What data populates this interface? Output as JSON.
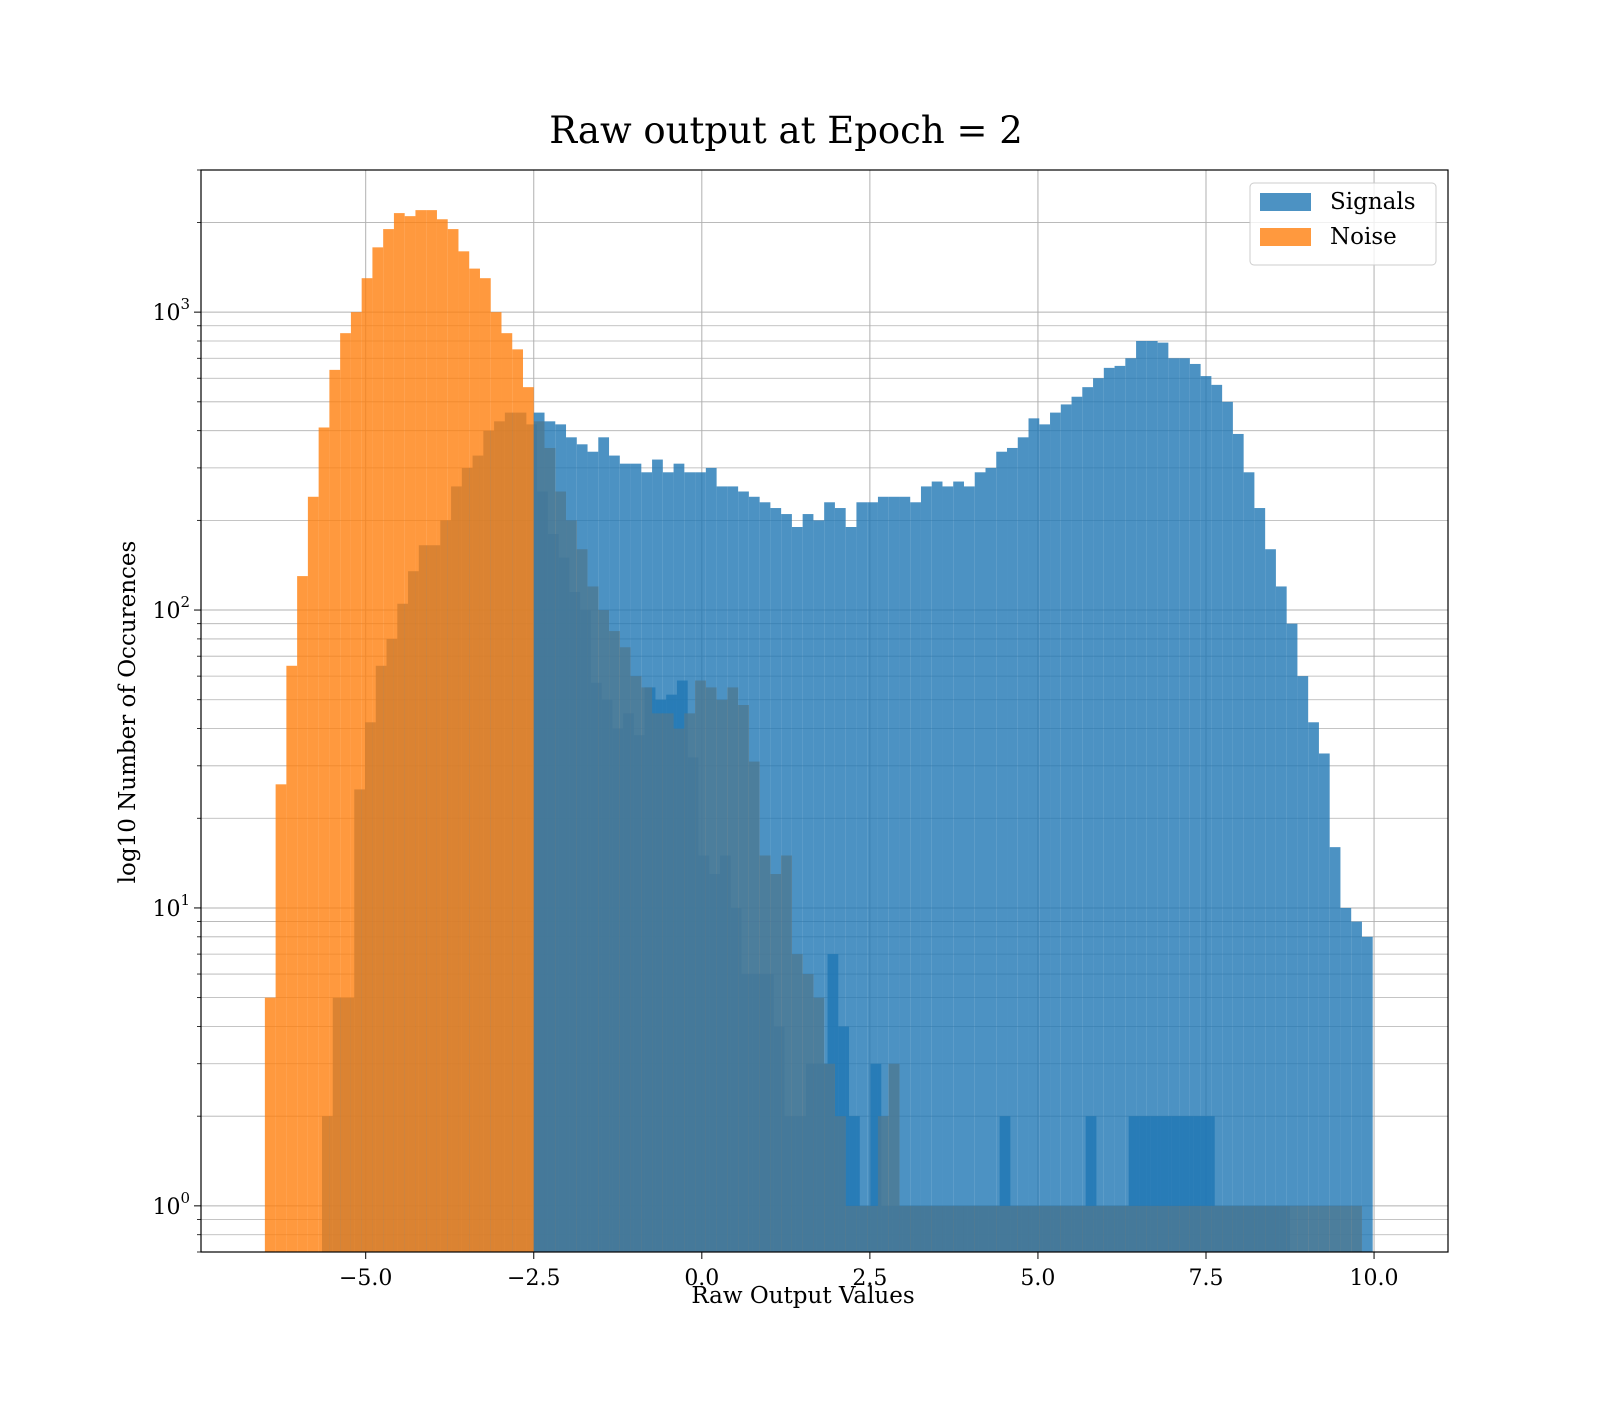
{
  "chart_data": {
    "type": "histogram",
    "title": "Raw output at Epoch = 2",
    "xlabel": "Raw Output Values",
    "ylabel": "log10 Number of Occurences",
    "yscale": "log",
    "xlim": [
      -7.45,
      11.1
    ],
    "ylim": [
      0.7,
      3000
    ],
    "xticks": [
      {
        "value": -5.0,
        "label": "−5.0"
      },
      {
        "value": -2.5,
        "label": "−2.5"
      },
      {
        "value": 0.0,
        "label": "0.0"
      },
      {
        "value": 2.5,
        "label": "2.5"
      },
      {
        "value": 5.0,
        "label": "5.0"
      },
      {
        "value": 7.5,
        "label": "7.5"
      },
      {
        "value": 10.0,
        "label": "10.0"
      }
    ],
    "yticks": [
      {
        "value": 1,
        "base": "10",
        "exp": "0"
      },
      {
        "value": 10,
        "base": "10",
        "exp": "1"
      },
      {
        "value": 100,
        "base": "10",
        "exp": "2"
      },
      {
        "value": 1000,
        "base": "10",
        "exp": "3"
      }
    ],
    "grid": true,
    "legend_position": "top-right",
    "series": [
      {
        "name": "Signals",
        "color": "#1f77b4",
        "alpha": 0.8,
        "bin_start": -5.65,
        "bin_width": 0.16,
        "counts": [
          2,
          5,
          5,
          25,
          42,
          65,
          80,
          105,
          135,
          165,
          165,
          200,
          260,
          300,
          330,
          400,
          430,
          460,
          460,
          420,
          250,
          180,
          150,
          115,
          100,
          57,
          50,
          40,
          45,
          38,
          55,
          50,
          52,
          58,
          32,
          15,
          13,
          15,
          10,
          6,
          6,
          6,
          4,
          2,
          2,
          3,
          3,
          7,
          4,
          2,
          1,
          3,
          1,
          1,
          1,
          1,
          1,
          1,
          1,
          1,
          1,
          1,
          1,
          2,
          1,
          1,
          1,
          1,
          1,
          1,
          1,
          2,
          1,
          1,
          1,
          2,
          2,
          2,
          2,
          2,
          2,
          2,
          2,
          1,
          1,
          1,
          1,
          1,
          1,
          1
        ]
      },
      {
        "name": "Noise",
        "color": "#ff7f0e",
        "alpha": 0.8,
        "bin_start": -6.5,
        "bin_width": 0.16,
        "counts": [
          5,
          26,
          65,
          130,
          240,
          410,
          640,
          850,
          1000,
          1300,
          1650,
          1900,
          2150,
          2100,
          2200,
          2200,
          2050,
          1900,
          1600,
          1400,
          1300,
          1000,
          850,
          750,
          560,
          430,
          350,
          250,
          200,
          160,
          120,
          100,
          85,
          75,
          60,
          55,
          45,
          45,
          40,
          45,
          58,
          55,
          50,
          55,
          48,
          31,
          15,
          13,
          15,
          7,
          6,
          5,
          3,
          2,
          1,
          1,
          1,
          2,
          3,
          1,
          1,
          1,
          1,
          1,
          1,
          1,
          1,
          1,
          1,
          1,
          1,
          1,
          1,
          1,
          1,
          1,
          1,
          1,
          1,
          1,
          1,
          1,
          1,
          1,
          1,
          1,
          1,
          1,
          1,
          1,
          1,
          1,
          1,
          1,
          1,
          1,
          1,
          1,
          1,
          1,
          1,
          1
        ]
      },
      {
        "name": "Signals",
        "color": "#1f77b4",
        "alpha": 0.8,
        "bin_start": -2.5,
        "bin_width": 0.16,
        "counts": [
          460,
          430,
          420,
          380,
          360,
          340,
          380,
          330,
          310,
          310,
          290,
          320,
          290,
          310,
          290,
          290,
          300,
          260,
          260,
          250,
          240,
          230,
          220,
          210,
          190,
          210,
          200,
          230,
          220,
          190,
          230,
          230,
          240,
          240,
          240,
          230,
          260,
          270,
          260,
          270,
          260,
          290,
          300,
          340,
          350,
          380,
          440,
          420,
          460,
          490,
          520,
          560,
          600,
          650,
          660,
          700,
          800,
          800,
          790,
          700,
          700,
          670,
          610,
          570,
          500,
          390,
          290,
          220,
          160,
          120,
          90,
          60,
          42,
          33,
          16,
          10,
          9,
          8
        ]
      }
    ]
  }
}
